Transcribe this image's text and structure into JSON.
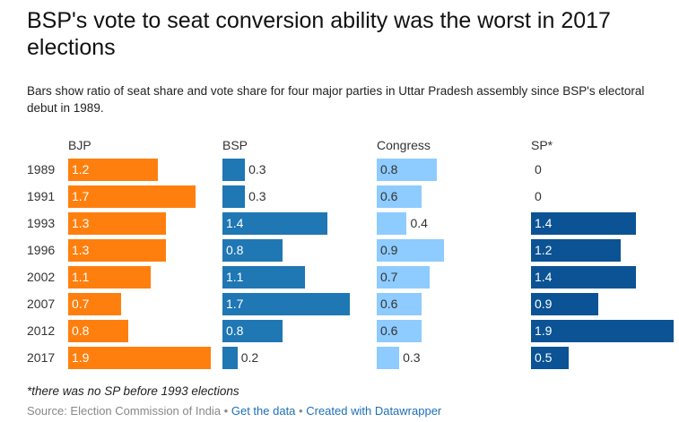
{
  "title": "BSP's vote to seat conversion ability was the worst in 2017 elections",
  "subtitle": "Bars show ratio of seat share and vote share for four major parties in Uttar Pradesh assembly since BSP's electoral debut in 1989.",
  "note": "*there was no SP before 1993 elections",
  "footer": {
    "source": "Source: Election Commission of India",
    "sep": "•",
    "get_data": "Get the data",
    "created": "Created with Datawrapper"
  },
  "chart_data": {
    "type": "bar",
    "orientation": "horizontal",
    "layout": "small-multiples",
    "categories": [
      "1989",
      "1991",
      "1993",
      "1996",
      "2002",
      "2007",
      "2012",
      "2017"
    ],
    "xlim": [
      0,
      1.9
    ],
    "grid": false,
    "series": [
      {
        "name": "BJP",
        "color": "#ff7f0e",
        "label_color": "#ffffff",
        "values": [
          1.2,
          1.7,
          1.3,
          1.3,
          1.1,
          0.7,
          0.8,
          1.9
        ]
      },
      {
        "name": "BSP",
        "color": "#1f77b4",
        "label_color": "#ffffff",
        "values": [
          0.3,
          0.3,
          1.4,
          0.8,
          1.1,
          1.7,
          0.8,
          0.2
        ]
      },
      {
        "name": "Congress",
        "color": "#8ecbff",
        "label_color": "#333333",
        "values": [
          0.8,
          0.6,
          0.4,
          0.9,
          0.7,
          0.6,
          0.6,
          0.3
        ]
      },
      {
        "name": "SP*",
        "color": "#0b5394",
        "label_color": "#ffffff",
        "values": [
          0,
          0,
          1.4,
          1.2,
          1.4,
          0.9,
          1.9,
          0.5
        ]
      }
    ]
  }
}
